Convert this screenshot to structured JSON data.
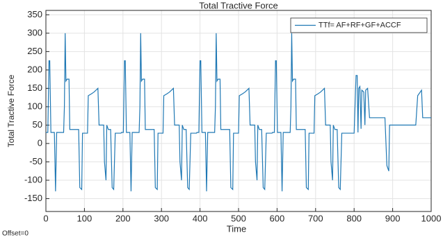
{
  "chart_data": {
    "type": "line",
    "title": "Total Tractive Force",
    "x_label": "Time",
    "y_label": "Total Tractive Force",
    "note": "Offset=0",
    "xlim": [
      0,
      1000
    ],
    "ylim": [
      -185,
      362
    ],
    "xticks": [
      0,
      100,
      200,
      300,
      400,
      500,
      600,
      700,
      800,
      900,
      1000
    ],
    "yticks": [
      -150,
      -100,
      -50,
      0,
      50,
      100,
      150,
      200,
      250,
      300,
      350
    ],
    "grid": true,
    "legend": "top-right",
    "series": [
      {
        "name": "TTf= AF+RF+GF+ACCF",
        "color": "#1f78b4",
        "x": [
          0,
          5,
          8,
          10,
          13,
          22,
          25,
          28,
          46,
          48,
          50,
          52,
          55,
          60,
          62,
          85,
          88,
          93,
          95,
          108,
          110,
          118,
          125,
          135,
          138,
          150,
          152,
          156,
          158,
          162,
          168,
          172,
          176,
          180,
          195,
          196,
          201,
          204,
          206,
          209,
          218,
          221,
          224,
          242,
          244,
          246,
          248,
          251,
          256,
          258,
          281,
          284,
          289,
          291,
          304,
          306,
          314,
          321,
          331,
          334,
          346,
          348,
          352,
          354,
          358,
          364,
          368,
          372,
          376,
          391,
          392,
          397,
          400,
          402,
          405,
          414,
          417,
          420,
          438,
          440,
          442,
          444,
          447,
          452,
          454,
          477,
          480,
          485,
          487,
          500,
          502,
          510,
          517,
          527,
          530,
          542,
          544,
          548,
          550,
          554,
          560,
          564,
          568,
          572,
          587,
          588,
          593,
          596,
          598,
          601,
          610,
          613,
          616,
          634,
          636,
          638,
          640,
          643,
          648,
          650,
          673,
          676,
          681,
          683,
          696,
          698,
          706,
          713,
          723,
          726,
          738,
          740,
          744,
          746,
          750,
          756,
          760,
          764,
          768,
          783,
          800,
          805,
          808,
          810,
          812,
          815,
          818,
          820,
          825,
          828,
          830,
          835,
          840,
          880,
          885,
          890,
          892,
          960,
          965,
          975,
          978,
          1000
        ],
        "values": [
          30,
          30,
          225,
          225,
          30,
          30,
          -130,
          30,
          30,
          100,
          300,
          170,
          175,
          175,
          38,
          38,
          -120,
          -125,
          28,
          28,
          130,
          135,
          140,
          150,
          50,
          50,
          -50,
          -100,
          50,
          38,
          38,
          -120,
          -125,
          28,
          28,
          30,
          30,
          225,
          225,
          30,
          30,
          -130,
          30,
          30,
          100,
          300,
          170,
          175,
          175,
          38,
          38,
          -120,
          -125,
          28,
          28,
          130,
          135,
          140,
          150,
          50,
          50,
          -50,
          -100,
          50,
          38,
          38,
          -120,
          -125,
          28,
          28,
          30,
          30,
          225,
          225,
          30,
          30,
          -130,
          30,
          30,
          100,
          300,
          170,
          175,
          175,
          38,
          38,
          -120,
          -125,
          28,
          28,
          130,
          135,
          140,
          150,
          50,
          50,
          -50,
          -100,
          50,
          38,
          38,
          -120,
          -125,
          28,
          28,
          30,
          30,
          225,
          225,
          30,
          30,
          -130,
          30,
          30,
          100,
          300,
          170,
          175,
          175,
          38,
          38,
          -120,
          -125,
          28,
          28,
          130,
          135,
          140,
          150,
          50,
          50,
          -50,
          -100,
          50,
          38,
          38,
          -120,
          -125,
          28,
          28,
          28,
          185,
          185,
          30,
          150,
          155,
          40,
          145,
          140,
          50,
          145,
          150,
          70,
          70,
          -60,
          -75,
          50,
          50,
          130,
          145,
          70,
          70
        ]
      }
    ]
  }
}
